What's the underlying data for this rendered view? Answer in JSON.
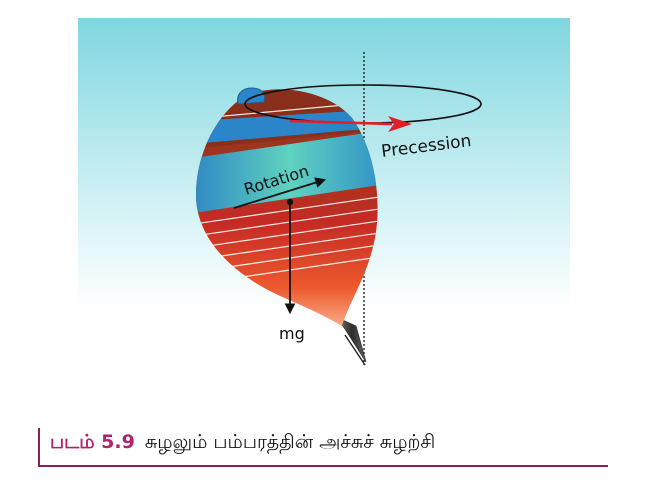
{
  "diagram": {
    "labels": {
      "rotation": "Rotation",
      "precession": "Precession",
      "weight": "mg"
    },
    "colors": {
      "sky_top": "#7fd6e0",
      "sky_bottom": "#ffffff",
      "top_blue": "#2a86c8",
      "top_brown": "#8a2f1c",
      "top_red": "#c62a24",
      "top_orange": "#f0683a",
      "band_teal": "#4cc9b8",
      "arrow_red": "#e21f26",
      "arrow_black": "#111111",
      "tip_grey": "#4a4a4a"
    }
  },
  "caption": {
    "label": "படம் 5.9",
    "text": "சுழலும் பம்பரத்தின் அச்சுச் சுழற்சி"
  }
}
